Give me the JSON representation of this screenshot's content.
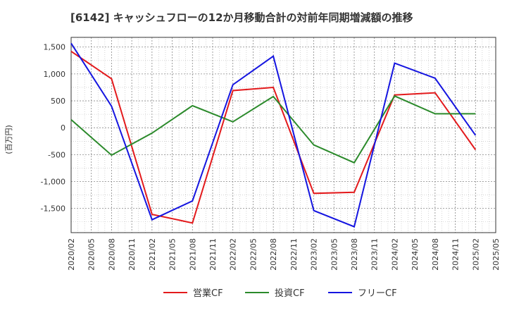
{
  "chart_data": {
    "type": "line",
    "title": "[6142]  キャッシュフローの12か月移動合計の対前年同期増減額の推移",
    "ylabel": "(百万円)",
    "xlabel": "",
    "ylim": [
      -1950,
      1680
    ],
    "yticks": [
      1500,
      1000,
      500,
      0,
      -500,
      -1000,
      -1500
    ],
    "ytick_labels": [
      "1,500",
      "1,000",
      "500",
      "0",
      "-500",
      "-1,000",
      "-1,500"
    ],
    "x": [
      "2020/02",
      "2020/05",
      "2020/08",
      "2020/11",
      "2021/02",
      "2021/05",
      "2021/08",
      "2021/11",
      "2022/02",
      "2022/05",
      "2022/08",
      "2022/11",
      "2023/02",
      "2023/05",
      "2023/08",
      "2023/11",
      "2024/02",
      "2024/05",
      "2024/08",
      "2024/11",
      "2025/02",
      "2025/05"
    ],
    "grid": true,
    "legend_position": "bottom",
    "series": [
      {
        "name": "営業CF",
        "color": "#e31a1c",
        "points": [
          {
            "x": "2020/02",
            "y": 1420
          },
          {
            "x": "2020/08",
            "y": 910
          },
          {
            "x": "2021/02",
            "y": -1610
          },
          {
            "x": "2021/08",
            "y": -1770
          },
          {
            "x": "2022/02",
            "y": 690
          },
          {
            "x": "2022/08",
            "y": 750
          },
          {
            "x": "2023/02",
            "y": -1220
          },
          {
            "x": "2023/08",
            "y": -1200
          },
          {
            "x": "2024/02",
            "y": 610
          },
          {
            "x": "2024/08",
            "y": 650
          },
          {
            "x": "2025/02",
            "y": -410
          }
        ]
      },
      {
        "name": "投資CF",
        "color": "#2b8a2b",
        "points": [
          {
            "x": "2020/02",
            "y": 150
          },
          {
            "x": "2020/08",
            "y": -510
          },
          {
            "x": "2021/02",
            "y": -100
          },
          {
            "x": "2021/08",
            "y": 410
          },
          {
            "x": "2022/02",
            "y": 110
          },
          {
            "x": "2022/08",
            "y": 580
          },
          {
            "x": "2023/02",
            "y": -320
          },
          {
            "x": "2023/08",
            "y": -650
          },
          {
            "x": "2024/02",
            "y": 590
          },
          {
            "x": "2024/08",
            "y": 260
          },
          {
            "x": "2025/02",
            "y": 260
          }
        ]
      },
      {
        "name": "フリーCF",
        "color": "#1515e0",
        "points": [
          {
            "x": "2020/02",
            "y": 1570
          },
          {
            "x": "2020/08",
            "y": 400
          },
          {
            "x": "2021/02",
            "y": -1710
          },
          {
            "x": "2021/08",
            "y": -1360
          },
          {
            "x": "2022/02",
            "y": 800
          },
          {
            "x": "2022/08",
            "y": 1330
          },
          {
            "x": "2023/02",
            "y": -1540
          },
          {
            "x": "2023/08",
            "y": -1840
          },
          {
            "x": "2024/02",
            "y": 1200
          },
          {
            "x": "2024/08",
            "y": 920
          },
          {
            "x": "2025/02",
            "y": -140
          }
        ]
      }
    ]
  }
}
